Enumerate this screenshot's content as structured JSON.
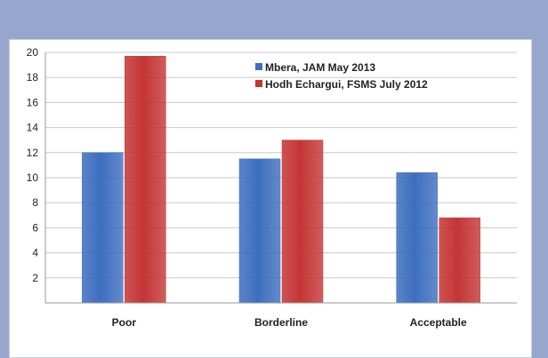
{
  "chart_data": {
    "type": "bar",
    "categories": [
      "Poor",
      "Borderline",
      "Acceptable"
    ],
    "series": [
      {
        "name": "Mbera, JAM May 2013",
        "values": [
          12,
          11.5,
          10.4
        ],
        "color": "#3d6ebf"
      },
      {
        "name": "Hodh Echargui, FSMS July 2012",
        "values": [
          19.7,
          13,
          6.8
        ],
        "color": "#c43535"
      }
    ],
    "yticks": [
      "2",
      "4",
      "6",
      "8",
      "10",
      "12",
      "14",
      "16",
      "18",
      "20"
    ],
    "ylim": [
      0,
      20
    ],
    "grid": true,
    "legend": "top-right",
    "title": "",
    "xlabel": "",
    "ylabel": ""
  },
  "colors": {
    "background": "#97a6cc",
    "panel": "#ffffff",
    "grid": "#c8c8c8"
  }
}
